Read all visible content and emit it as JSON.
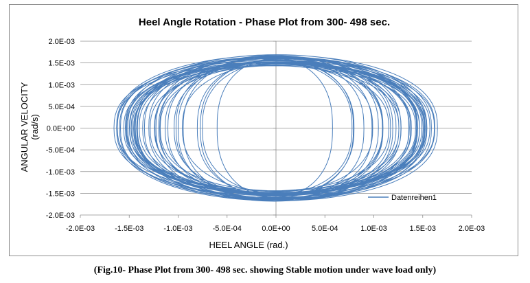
{
  "chart_data": {
    "type": "line",
    "title": "Heel Angle Rotation - Phase Plot from 300- 498 sec.",
    "xlabel": "HEEL ANGLE   (rad.)",
    "ylabel_line1": "ANGULAR VELOCITY",
    "ylabel_line2": "(rad/s)",
    "xlim": [
      -0.002,
      0.002
    ],
    "ylim": [
      -0.002,
      0.002
    ],
    "x_ticks": [
      -0.002,
      -0.0015,
      -0.001,
      -0.0005,
      0,
      0.0005,
      0.001,
      0.0015,
      0.002
    ],
    "x_tick_labels": [
      "-2.0E-03",
      "-1.5E-03",
      "-1.0E-03",
      "-5.0E-04",
      "0.0E+00",
      "5.0E-04",
      "1.0E-03",
      "1.5E-03",
      "2.0E-03"
    ],
    "y_ticks": [
      0.002,
      0.0015,
      0.001,
      0.0005,
      0,
      -0.0005,
      -0.001,
      -0.0015,
      -0.002
    ],
    "y_tick_labels": [
      "2.0E-03",
      "1.5E-03",
      "1.0E-03",
      "5.0E-04",
      "0.0E+00",
      "-5.0E-04",
      "-1.0E-03",
      "-1.5E-03",
      "-2.0E-03"
    ],
    "grid": "horizontal",
    "legend_position": "right",
    "series": [
      {
        "name": "Datenreihen1",
        "color": "#4a7ebb",
        "description": "Closed phase-plane orbits with heel-angle amplitudes between about 5.9E-04 and 1.64E-03 rad and angular-velocity peaks between about 1.44E-03 and 1.68E-03 rad/s",
        "x_amplitude_range": [
          0.00059,
          0.00164
        ],
        "y_peak_range": [
          0.00144,
          0.00168
        ],
        "orbit_count": 45
      }
    ]
  },
  "caption": "(Fig.10- Phase Plot from 300- 498 sec. showing Stable motion under wave load only)"
}
